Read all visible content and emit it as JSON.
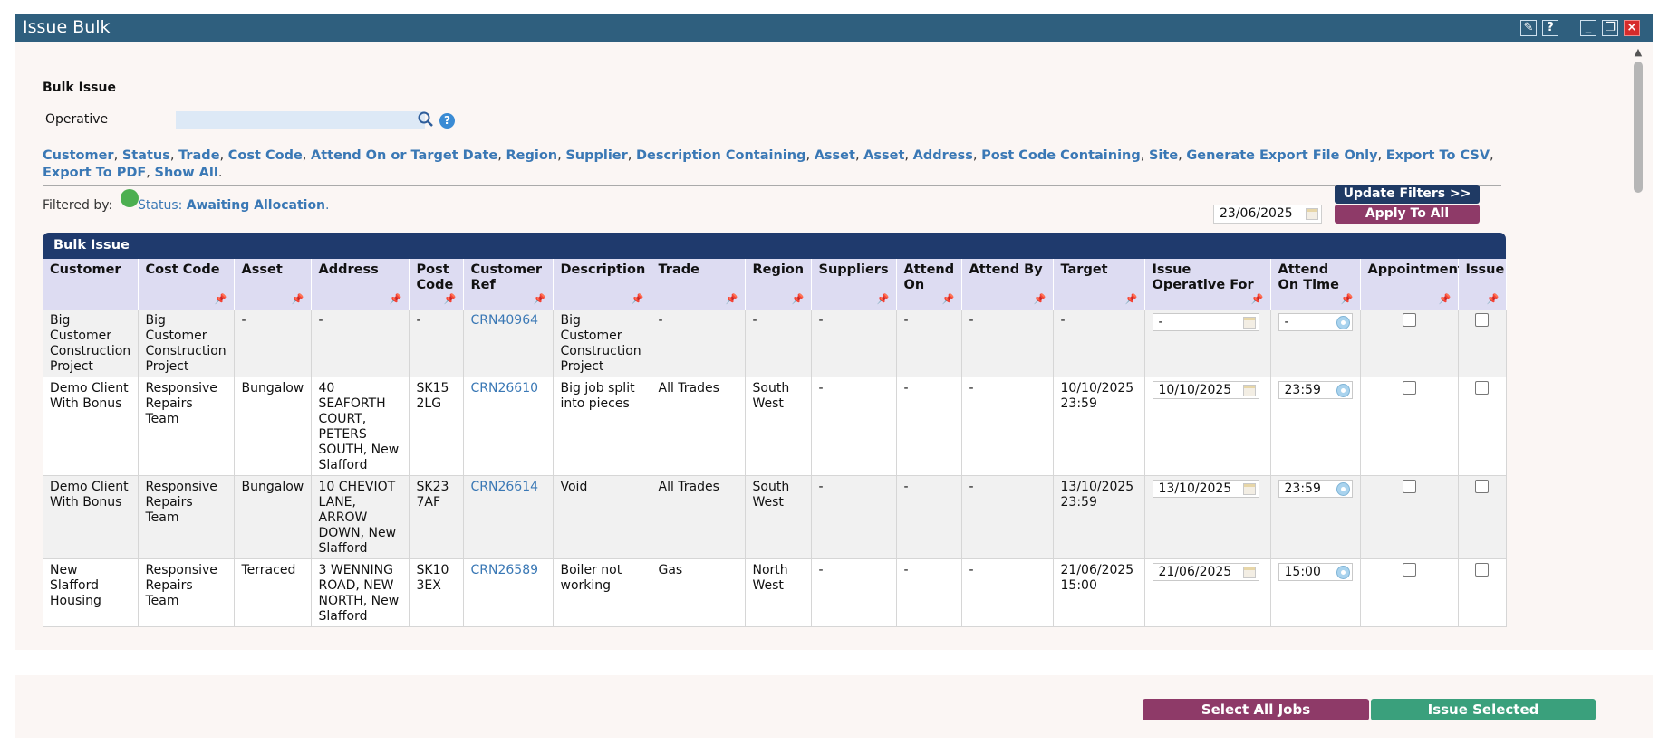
{
  "window": {
    "title": "Issue Bulk"
  },
  "page": {
    "section_title": "Bulk Issue",
    "operative_label": "Operative",
    "operative_value": "",
    "filter_links": [
      "Customer",
      "Status",
      "Trade",
      "Cost Code",
      "Attend On or Target Date",
      "Region",
      "Supplier",
      "Description Containing",
      "Asset",
      "Asset",
      "Address",
      "Post Code Containing",
      "Site",
      "Generate Export File Only",
      "Export To CSV",
      "Export To PDF",
      "Show All"
    ],
    "filtered_by_label": "Filtered by:",
    "filtered_status_key": "Status:",
    "filtered_status_value": "Awaiting Allocation",
    "update_filters_label": "Update Filters >>",
    "apply_date": "23/06/2025",
    "apply_to_all_label": "Apply To All"
  },
  "grid": {
    "title": "Bulk Issue",
    "columns": [
      "Customer",
      "Cost Code",
      "Asset",
      "Address",
      "Post Code",
      "Customer Ref",
      "Description",
      "Trade",
      "Region",
      "Suppliers",
      "Attend On",
      "Attend By",
      "Target",
      "Issue Operative For",
      "Attend On Time",
      "Appointment",
      "Issue"
    ],
    "rows": [
      {
        "customer": "Big Customer Construction Project",
        "cost_code": "Big Customer Construction Project",
        "asset": "-",
        "address": "-",
        "post_code": "-",
        "customer_ref": "CRN40964",
        "description": "Big Customer Construction Project",
        "trade": "-",
        "region": "-",
        "suppliers": "-",
        "attend_on": "-",
        "attend_by": "-",
        "target": "-",
        "issue_for": "-",
        "attend_time": "-",
        "appointment": false,
        "issue": false
      },
      {
        "customer": "Demo Client With Bonus",
        "cost_code": "Responsive Repairs Team",
        "asset": "Bungalow",
        "address": "40 SEAFORTH COURT, PETERS SOUTH, New Slafford",
        "post_code": "SK15 2LG",
        "customer_ref": "CRN26610",
        "description": "Big job split into pieces",
        "trade": "All Trades",
        "region": "South West",
        "suppliers": "-",
        "attend_on": "-",
        "attend_by": "-",
        "target": "10/10/2025 23:59",
        "issue_for": "10/10/2025",
        "attend_time": "23:59",
        "appointment": false,
        "issue": false
      },
      {
        "customer": "Demo Client With Bonus",
        "cost_code": "Responsive Repairs Team",
        "asset": "Bungalow",
        "address": "10 CHEVIOT LANE, ARROW DOWN, New Slafford",
        "post_code": "SK23 7AF",
        "customer_ref": "CRN26614",
        "description": "Void",
        "trade": "All Trades",
        "region": "South West",
        "suppliers": "-",
        "attend_on": "-",
        "attend_by": "-",
        "target": "13/10/2025 23:59",
        "issue_for": "13/10/2025",
        "attend_time": "23:59",
        "appointment": false,
        "issue": false
      },
      {
        "customer": "New Slafford Housing",
        "cost_code": "Responsive Repairs Team",
        "asset": "Terraced",
        "address": "3 WENNING ROAD, NEW NORTH, New Slafford",
        "post_code": "SK10 3EX",
        "customer_ref": "CRN26589",
        "description": "Boiler not working",
        "trade": "Gas",
        "region": "North West",
        "suppliers": "-",
        "attend_on": "-",
        "attend_by": "-",
        "target": "21/06/2025 15:00",
        "issue_for": "21/06/2025",
        "attend_time": "15:00",
        "appointment": false,
        "issue": false
      }
    ]
  },
  "footer": {
    "select_all_label": "Select All Jobs",
    "issue_selected_label": "Issue Selected"
  },
  "colors": {
    "titlebar": "#2f5f7e",
    "navy": "#1f3a64",
    "purple": "#8e3a68",
    "green": "#3aa07c",
    "link": "#3a78b5"
  }
}
